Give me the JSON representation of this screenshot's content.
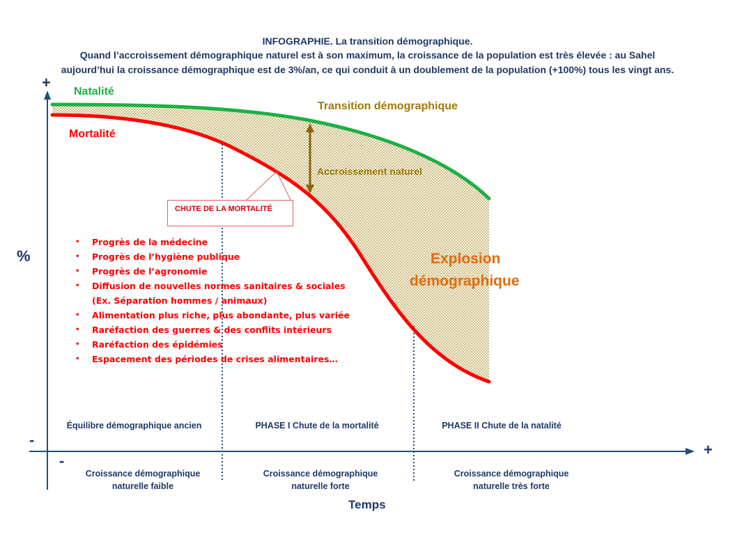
{
  "header": {
    "line1": "INFOGRAPHIE. La transition démographique.",
    "line2": "Quand l’accroissement démographique naturel est à son maximum, la croissance de la population est très élevée : au Sahel",
    "line3": "aujourd’hui la croissance démographique est de 3%/an, ce qui conduit à un doublement de la population (+100%) tous les vingt ans."
  },
  "axes": {
    "y_label": "%",
    "x_label": "Temps",
    "y_plus": "+",
    "y_minus": "-",
    "x_plus": "+",
    "x_minus": "-"
  },
  "curves": {
    "natalite_label": "Natalité",
    "mortalite_label": "Mortalité",
    "transition_label": "Transition démographique",
    "accroissement_label": "Accroissement naturel",
    "explosion_line1": "Explosion",
    "explosion_line2": "démographique",
    "colors": {
      "natalite": "#1db045",
      "mortalite": "#ff0000",
      "gap_fill": "#c9b76a",
      "axis": "#1f4e79",
      "arrow": "#8b6508"
    }
  },
  "callout": {
    "text": "CHUTE DE LA MORTALITÉ"
  },
  "causes": [
    "Progrès de la médecine",
    "Progrès de l’hygiène publique",
    "Progrès de l’agronomie",
    "Diffusion de nouvelles normes sanitaires & sociales",
    "(Ex. Séparation hommes / animaux)",
    "Alimentation plus riche, plus abondante, plus variée",
    "Raréfaction des guerres & des conflits intérieurs",
    "Raréfaction des épidémies",
    "Espacement des périodes de crises alimentaires…"
  ],
  "bullet_char": "•",
  "phases": {
    "p0": "Équilibre démographique ancien",
    "p1": "PHASE I Chute de la mortalité",
    "p2": "PHASE II Chute de la natalité"
  },
  "growth": {
    "g0_line1": "Croissance démographique",
    "g0_line2": "naturelle faible",
    "g1_line1": "Croissance démographique",
    "g1_line2": "naturelle forte",
    "g2_line1": "Croissance démographique",
    "g2_line2": "naturelle très forte"
  }
}
